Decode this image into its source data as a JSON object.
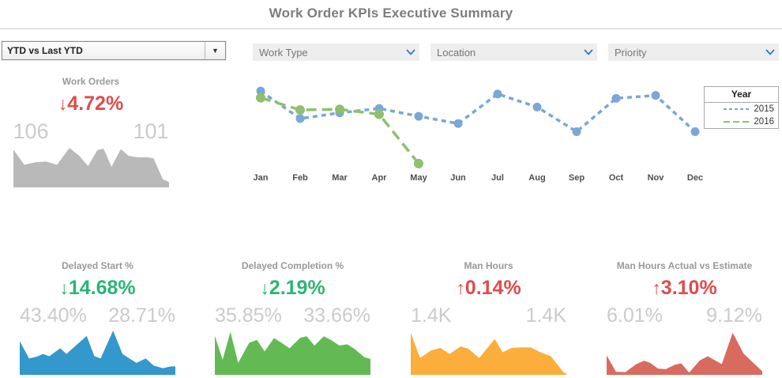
{
  "title": "Work Order KPIs Executive Summary",
  "controls": {
    "comparison_select": {
      "value": "YTD vs Last YTD",
      "arrow_icon": "▼"
    },
    "filters": [
      {
        "label": "Work Type"
      },
      {
        "label": "Location"
      },
      {
        "label": "Priority"
      }
    ],
    "filter_chevron_color": "#2f77bd"
  },
  "kpis": {
    "work_orders": {
      "title": "Work Orders",
      "arrow": "↓",
      "change": "4.72%",
      "change_color": "#e14b4b",
      "start_value": "106",
      "end_value": "101",
      "spark_color": "#b9b9b9"
    },
    "delayed_start": {
      "title": "Delayed Start %",
      "arrow": "↓",
      "change": "14.68%",
      "change_color": "#2ab573",
      "start_value": "43.40%",
      "end_value": "28.71%",
      "spark_color": "#3398cb"
    },
    "delayed_completion": {
      "title": "Delayed Completion %",
      "arrow": "↓",
      "change": "2.19%",
      "change_color": "#2ab573",
      "start_value": "35.85%",
      "end_value": "33.66%",
      "spark_color": "#63ba55"
    },
    "man_hours": {
      "title": "Man Hours",
      "arrow": "↑",
      "change": "0.14%",
      "change_color": "#e14b4b",
      "start_value": "1.4K",
      "end_value": "1.4K",
      "spark_color": "#fbae3c"
    },
    "man_hours_ae": {
      "title": "Man Hours Actual vs Estimate",
      "arrow": "↑",
      "change": "3.10%",
      "change_color": "#e14b4b",
      "start_value": "6.01%",
      "end_value": "9.12%",
      "spark_color": "#d96a60"
    }
  },
  "chart_data": [
    {
      "id": "work-orders-by-month",
      "type": "line",
      "title": "",
      "categories": [
        "Jan",
        "Feb",
        "Mar",
        "Apr",
        "May",
        "Jun",
        "Jul",
        "Aug",
        "Sep",
        "Oct",
        "Nov",
        "Dec"
      ],
      "series": [
        {
          "name": "2015",
          "color": "#7aa7d8",
          "dash": "6,5",
          "marker_r": 5.5,
          "values": [
            27.5,
            18,
            20,
            21.5,
            18.8,
            16.3,
            26.5,
            22,
            13.5,
            25,
            26,
            13.5
          ]
        },
        {
          "name": "2016",
          "color": "#8ec06e",
          "dash": "13,7",
          "marker_r": 6,
          "values": [
            25.2,
            21,
            21.2,
            19.5,
            2.5,
            null,
            null,
            null,
            null,
            null,
            null,
            null
          ]
        }
      ],
      "ylim": [
        0,
        30
      ],
      "grid": false,
      "legend": {
        "title": "Year",
        "position": "top-right"
      }
    },
    {
      "id": "work-orders-spark",
      "type": "area",
      "label": "Work Orders",
      "color": "#b9b9b9",
      "ylim": [
        0,
        100
      ],
      "points": [
        [
          0,
          92
        ],
        [
          7,
          55
        ],
        [
          14,
          61
        ],
        [
          21,
          63
        ],
        [
          28,
          55
        ],
        [
          36,
          96
        ],
        [
          42,
          78
        ],
        [
          48,
          52
        ],
        [
          54,
          91
        ],
        [
          58,
          94
        ],
        [
          63,
          50
        ],
        [
          69,
          93
        ],
        [
          74,
          77
        ],
        [
          80,
          73
        ],
        [
          86,
          73
        ],
        [
          90,
          71
        ],
        [
          96,
          20
        ],
        [
          100,
          13
        ]
      ]
    },
    {
      "id": "delayed-start-spark",
      "type": "area",
      "label": "Delayed Start %",
      "color": "#3398cb",
      "ylim": [
        0,
        100
      ],
      "points": [
        [
          0,
          76
        ],
        [
          6,
          37
        ],
        [
          11,
          41
        ],
        [
          15,
          47
        ],
        [
          19,
          42
        ],
        [
          26,
          60
        ],
        [
          30,
          47
        ],
        [
          43,
          88
        ],
        [
          48,
          42
        ],
        [
          52,
          37
        ],
        [
          60,
          100
        ],
        [
          66,
          47
        ],
        [
          70,
          38
        ],
        [
          75,
          27
        ],
        [
          81,
          37
        ],
        [
          86,
          21
        ],
        [
          92,
          15
        ],
        [
          97,
          19
        ],
        [
          100,
          19
        ]
      ]
    },
    {
      "id": "delayed-completion-spark",
      "type": "area",
      "label": "Delayed Completion %",
      "color": "#63ba55",
      "ylim": [
        0,
        100
      ],
      "points": [
        [
          0,
          88
        ],
        [
          5,
          34
        ],
        [
          10,
          97
        ],
        [
          15,
          27
        ],
        [
          22,
          72
        ],
        [
          27,
          79
        ],
        [
          32,
          53
        ],
        [
          38,
          83
        ],
        [
          43,
          72
        ],
        [
          48,
          60
        ],
        [
          55,
          84
        ],
        [
          59,
          87
        ],
        [
          64,
          66
        ],
        [
          70,
          87
        ],
        [
          75,
          78
        ],
        [
          80,
          66
        ],
        [
          85,
          69
        ],
        [
          90,
          58
        ],
        [
          96,
          40
        ],
        [
          100,
          36
        ]
      ]
    },
    {
      "id": "man-hours-spark",
      "type": "area",
      "label": "Man Hours",
      "color": "#fbae3c",
      "ylim": [
        0,
        100
      ],
      "points": [
        [
          0,
          95
        ],
        [
          6,
          38
        ],
        [
          13,
          55
        ],
        [
          19,
          61
        ],
        [
          25,
          47
        ],
        [
          32,
          64
        ],
        [
          37,
          59
        ],
        [
          44,
          38
        ],
        [
          54,
          81
        ],
        [
          59,
          51
        ],
        [
          65,
          61
        ],
        [
          71,
          62
        ],
        [
          77,
          62
        ],
        [
          84,
          50
        ],
        [
          90,
          42
        ],
        [
          95,
          20
        ],
        [
          98,
          6
        ],
        [
          100,
          3
        ]
      ]
    },
    {
      "id": "man-hours-ae-spark",
      "type": "area",
      "label": "Man Hours Actual vs Estimate",
      "color": "#d96a60",
      "ylim": [
        0,
        100
      ],
      "points": [
        [
          0,
          44
        ],
        [
          6,
          7
        ],
        [
          12,
          6
        ],
        [
          19,
          24
        ],
        [
          24,
          32
        ],
        [
          28,
          27
        ],
        [
          33,
          14
        ],
        [
          38,
          13
        ],
        [
          44,
          23
        ],
        [
          48,
          26
        ],
        [
          53,
          5
        ],
        [
          60,
          33
        ],
        [
          65,
          42
        ],
        [
          69,
          34
        ],
        [
          74,
          24
        ],
        [
          81,
          95
        ],
        [
          88,
          48
        ],
        [
          94,
          28
        ],
        [
          100,
          8
        ]
      ]
    }
  ]
}
